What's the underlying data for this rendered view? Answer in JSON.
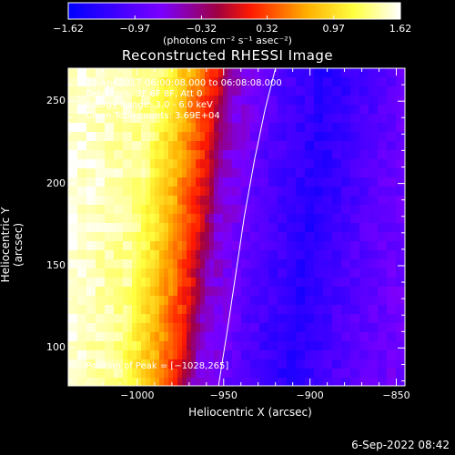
{
  "chart_data": {
    "type": "heatmap",
    "title": "Reconstructed RHESSI Image",
    "xlabel": "Heliocentric X (arcsec)",
    "ylabel": "Heliocentric Y (arcsec)",
    "xlim": [
      -1040,
      -845
    ],
    "ylim": [
      77,
      270
    ],
    "x_ticks": [
      -1000,
      -950,
      -900,
      -850
    ],
    "x_tick_labels": [
      "−1000",
      "−950",
      "−900",
      "−850"
    ],
    "y_ticks": [
      100,
      150,
      200,
      250
    ],
    "y_tick_labels": [
      "100",
      "150",
      "200",
      "250"
    ],
    "colorbar": {
      "min": -1.62,
      "max": 1.62,
      "ticks": [
        -1.62,
        -0.97,
        -0.32,
        0.32,
        0.97,
        1.62
      ],
      "tick_labels": [
        "−1.62",
        "−0.97",
        "−0.32",
        "0.32",
        "0.97",
        "1.62"
      ],
      "units_label": "(photons cm⁻² s⁻¹ asec⁻²)",
      "colors": [
        "#0000ff",
        "#7f00ff",
        "#ff0000",
        "#ffff00",
        "#ffffff"
      ]
    },
    "intensity_profile_x": [
      -1040,
      -1000,
      -980,
      -965,
      -955,
      -945,
      -930,
      -900,
      -870,
      -845
    ],
    "intensity_profile_value": [
      1.55,
      1.35,
      0.7,
      0.1,
      -0.55,
      -0.7,
      -1.0,
      -1.35,
      -1.0,
      -0.8
    ],
    "limb_curve": {
      "x": [
        -953,
        -948,
        -943,
        -938,
        -932,
        -926,
        -920
      ],
      "y": [
        77,
        110,
        145,
        180,
        215,
        245,
        270
      ]
    },
    "annotations": {
      "time_range": "19-Apr-2017 06:00:08.000 to 06:08:08.000",
      "detectors": "Detectors: 3F 6F 8F, Att 0",
      "energy": "Energy Range: 3.0 - 6.0 keV",
      "algorithm": "Clean     Total counts: 3.69E+04",
      "peak": "Position of Peak = [−1028,265]"
    },
    "timestamp": "6-Sep-2022 08:42"
  }
}
